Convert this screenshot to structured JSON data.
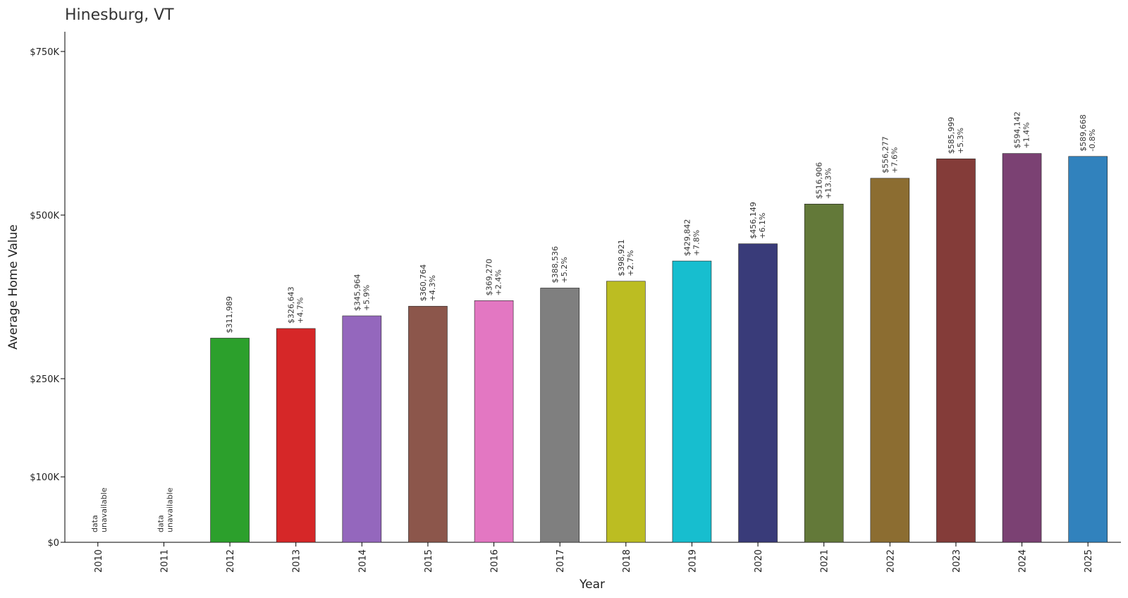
{
  "chart_data": {
    "type": "bar",
    "title": "Hinesburg, VT",
    "xlabel": "Year",
    "ylabel": "Average Home Value",
    "ylim": [
      0,
      780000
    ],
    "yticks": [
      {
        "value": 0,
        "label": "$0"
      },
      {
        "value": 100000,
        "label": "$100K"
      },
      {
        "value": 250000,
        "label": "$250K"
      },
      {
        "value": 500000,
        "label": "$500K"
      },
      {
        "value": 750000,
        "label": "$750K"
      }
    ],
    "categories": [
      "2010",
      "2011",
      "2012",
      "2013",
      "2014",
      "2015",
      "2016",
      "2017",
      "2018",
      "2019",
      "2020",
      "2021",
      "2022",
      "2023",
      "2024",
      "2025"
    ],
    "values": [
      null,
      null,
      311989,
      326643,
      345964,
      360764,
      369270,
      388536,
      398921,
      429842,
      456149,
      516906,
      556277,
      585999,
      594142,
      589668
    ],
    "value_labels": [
      "",
      "",
      "$311,989",
      "$326,643",
      "$345,964",
      "$360,764",
      "$369,270",
      "$388,536",
      "$398,921",
      "$429,842",
      "$456,149",
      "$516,906",
      "$556,277",
      "$585,999",
      "$594,142",
      "$589,668"
    ],
    "change_labels": [
      "",
      "",
      "",
      "+4.7%",
      "+5.9%",
      "+4.3%",
      "+2.4%",
      "+5.2%",
      "+2.7%",
      "+7.8%",
      "+6.1%",
      "+13.3%",
      "+7.6%",
      "+5.3%",
      "+1.4%",
      "-0.8%"
    ],
    "missing_label_lines": [
      "data",
      "unavailable"
    ],
    "colors": [
      "#1f77b4",
      "#ff7f0e",
      "#2ca02c",
      "#d62728",
      "#9467bd",
      "#8c564b",
      "#e377c2",
      "#7f7f7f",
      "#bcbd22",
      "#17becf",
      "#393b79",
      "#637939",
      "#8c6d31",
      "#843c39",
      "#7b4173",
      "#3182bd"
    ],
    "grid": false,
    "legend": "none"
  }
}
